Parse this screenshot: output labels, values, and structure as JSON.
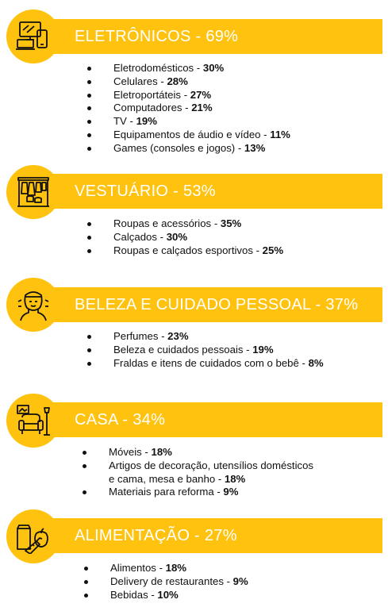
{
  "sections": [
    {
      "title": "ELETRÔNICOS - 69%",
      "icon": "electronics-icon",
      "items": [
        {
          "label": "Eletrodomésticos - ",
          "value": "30%"
        },
        {
          "label": "Celulares - ",
          "value": "28%"
        },
        {
          "label": "Eletroportáteis - ",
          "value": "27%"
        },
        {
          "label": "Computadores - ",
          "value": "21%"
        },
        {
          "label": "TV - ",
          "value": "19%"
        },
        {
          "label": "Equipamentos de áudio e vídeo - ",
          "value": "11%"
        },
        {
          "label": "Games (consoles e jogos) - ",
          "value": "13%"
        }
      ]
    },
    {
      "title": "VESTUÁRIO - 53%",
      "icon": "clothing-rack-icon",
      "items": [
        {
          "label": "Roupas e acessórios - ",
          "value": "35%"
        },
        {
          "label": "Calçados - ",
          "value": "30%"
        },
        {
          "label": "Roupas e calçados esportivos - ",
          "value": "25%"
        }
      ]
    },
    {
      "title": "BELEZA E CUIDADO PESSOAL - 37%",
      "icon": "beauty-face-icon",
      "items": [
        {
          "label": "Perfumes -  ",
          "value": "23%"
        },
        {
          "label": "Beleza e cuidados pessoais - ",
          "value": "19%"
        },
        {
          "label": "Fraldas e itens de cuidados com o bebê - ",
          "value": "8%"
        }
      ]
    },
    {
      "title": "CASA - 34%",
      "icon": "home-armchair-icon",
      "items": [
        {
          "label": "Móveis - ",
          "value": "18%"
        },
        {
          "label": "Artigos de decoração, utensílios domésticos",
          "label2": "e cama, mesa e banho - ",
          "value": "18%"
        },
        {
          "label": "Materiais para reforma - ",
          "value": "9%"
        }
      ]
    },
    {
      "title": "ALIMENTAÇÃO - 27%",
      "icon": "food-icon",
      "items": [
        {
          "label": "Alimentos - ",
          "value": "18%"
        },
        {
          "label": "Delivery de restaurantes - ",
          "value": "9%"
        },
        {
          "label": "Bebidas - ",
          "value": "10%"
        }
      ]
    }
  ],
  "colors": {
    "accent": "#FFC20E",
    "text": "#111111",
    "banner_text": "#ffffff"
  }
}
